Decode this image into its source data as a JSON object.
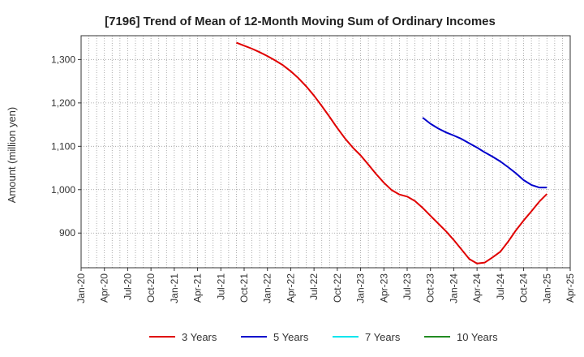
{
  "chart_data": {
    "type": "line",
    "title": "[7196]  Trend of Mean of 12-Month Moving Sum of Ordinary Incomes",
    "xlabel": "",
    "ylabel": "Amount (million yen)",
    "ylim": [
      820,
      1355
    ],
    "yticks": [
      900,
      1000,
      1100,
      1200,
      1300
    ],
    "ytick_labels": [
      "900",
      "1,000",
      "1,100",
      "1,200",
      "1,300"
    ],
    "xticks": [
      "Jan-20",
      "Apr-20",
      "Jul-20",
      "Oct-20",
      "Jan-21",
      "Apr-21",
      "Jul-21",
      "Oct-21",
      "Jan-22",
      "Apr-22",
      "Jul-22",
      "Oct-22",
      "Jan-23",
      "Apr-23",
      "Jul-23",
      "Oct-23",
      "Jan-24",
      "Apr-24",
      "Jul-24",
      "Oct-24",
      "Jan-25",
      "Apr-25"
    ],
    "x_unit": "months since Jan-20",
    "grid": true,
    "legend_position": "bottom",
    "series": [
      {
        "name": "3 Years",
        "color": "#e00000",
        "x": [
          20,
          21,
          22,
          23,
          24,
          25,
          26,
          27,
          28,
          29,
          30,
          31,
          32,
          33,
          34,
          35,
          36,
          37,
          38,
          39,
          40,
          41,
          42,
          43,
          44,
          45,
          46,
          47,
          48,
          49,
          50,
          51,
          52,
          53,
          54,
          55,
          56,
          57,
          58,
          59,
          60
        ],
        "values": [
          1339,
          1332,
          1325,
          1317,
          1308,
          1298,
          1287,
          1273,
          1257,
          1238,
          1217,
          1193,
          1168,
          1142,
          1118,
          1097,
          1079,
          1058,
          1036,
          1016,
          999,
          989,
          984,
          974,
          958,
          940,
          922,
          904,
          884,
          862,
          840,
          830,
          832,
          844,
          857,
          880,
          906,
          929,
          950,
          972,
          990
        ],
        "values_note": "last visible segment ends near Jan-25",
        "x_visible_end": 60
      },
      {
        "name": "5 Years",
        "color": "#0000cc",
        "x": [
          44,
          45,
          46,
          47,
          48,
          49,
          50,
          51,
          52,
          53,
          54,
          55,
          56,
          57,
          58,
          59,
          60
        ],
        "values": [
          1166,
          1152,
          1141,
          1132,
          1125,
          1117,
          1107,
          1097,
          1086,
          1076,
          1065,
          1052,
          1038,
          1022,
          1011,
          1005,
          1005
        ]
      },
      {
        "name": "7 Years",
        "color": "#00e5ee",
        "x": [],
        "values": []
      },
      {
        "name": "10 Years",
        "color": "#228b22",
        "x": [],
        "values": []
      }
    ]
  }
}
